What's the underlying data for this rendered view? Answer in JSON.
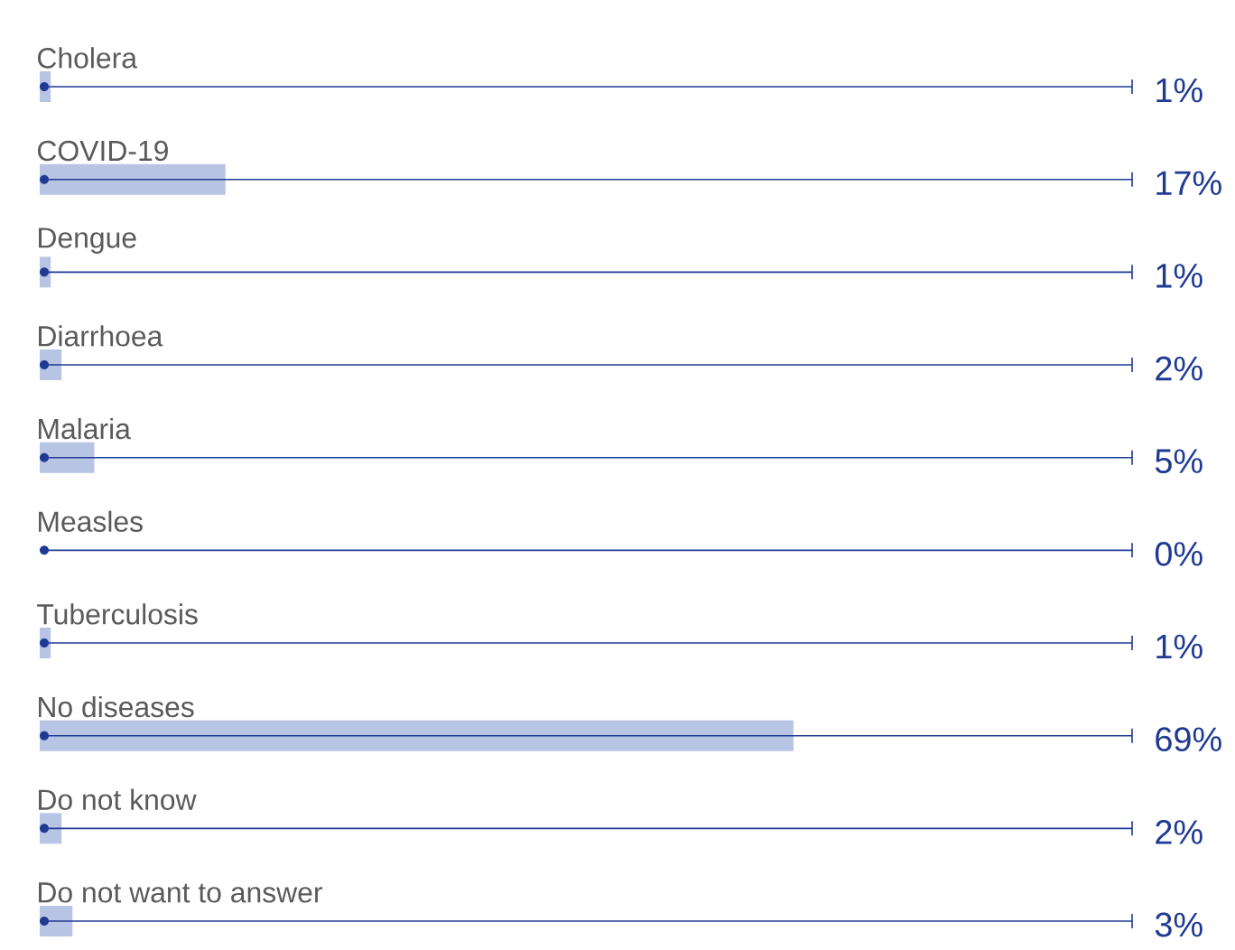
{
  "chart_data": {
    "type": "bar",
    "orientation": "horizontal",
    "categories": [
      "Cholera",
      "COVID-19",
      "Dengue",
      "Diarrhoea",
      "Malaria",
      "Measles",
      "Tuberculosis",
      "No diseases",
      "Do not know",
      "Do not want to answer"
    ],
    "values": [
      1,
      17,
      1,
      2,
      5,
      0,
      1,
      69,
      2,
      3
    ],
    "value_labels": [
      "1%",
      "17%",
      "1%",
      "2%",
      "5%",
      "0%",
      "1%",
      "69%",
      "2%",
      "3%"
    ],
    "color": "#b7c4e4",
    "xlim": [
      0,
      100
    ]
  }
}
